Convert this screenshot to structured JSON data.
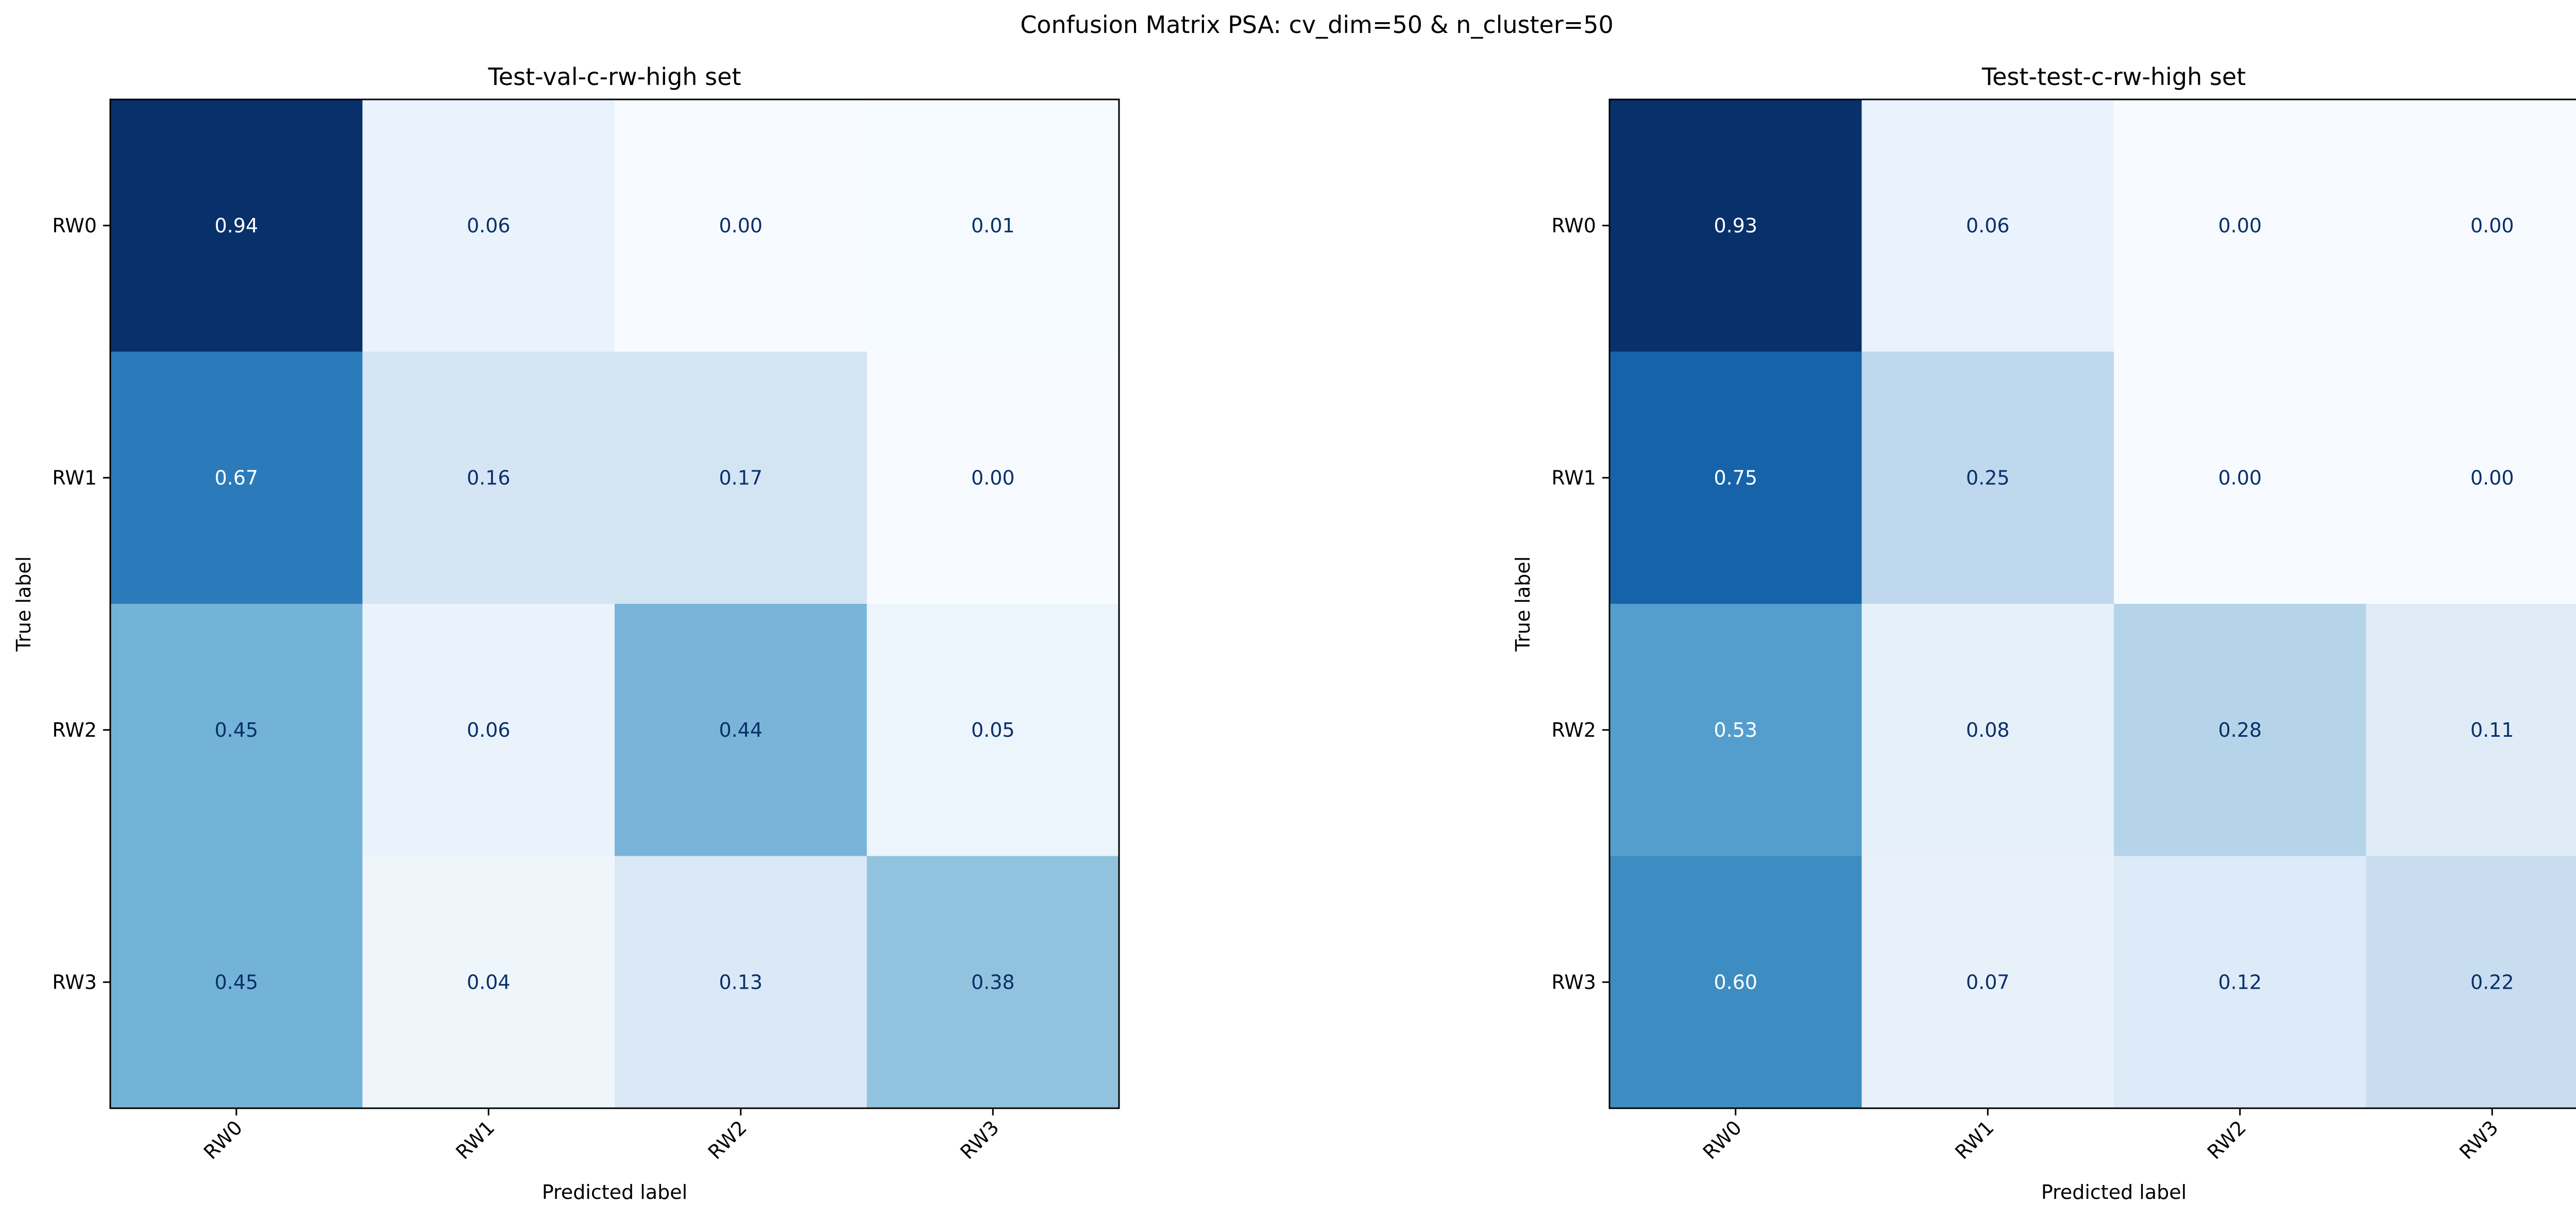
{
  "figure": {
    "suptitle": "Confusion Matrix PSA: cv_dim=50 & n_cluster=50"
  },
  "colormap": {
    "name": "Blues",
    "low": "#f7fbff",
    "high": "#08306b",
    "text_light": "#ffffff",
    "text_dark": "#08306b"
  },
  "chart_data": [
    {
      "type": "heatmap",
      "title": "Test-val-c-rw-high set",
      "xlabel": "Predicted label",
      "ylabel": "True label",
      "x_categories": [
        "RW0",
        "RW1",
        "RW2",
        "RW3"
      ],
      "y_categories": [
        "RW0",
        "RW1",
        "RW2",
        "RW3"
      ],
      "values": [
        [
          0.94,
          0.06,
          0.0,
          0.01
        ],
        [
          0.67,
          0.16,
          0.17,
          0.0
        ],
        [
          0.45,
          0.06,
          0.44,
          0.05
        ],
        [
          0.45,
          0.04,
          0.13,
          0.38
        ]
      ],
      "labels": [
        [
          "0.94",
          "0.06",
          "0.00",
          "0.01"
        ],
        [
          "0.67",
          "0.16",
          "0.17",
          "0.00"
        ],
        [
          "0.45",
          "0.06",
          "0.44",
          "0.05"
        ],
        [
          "0.45",
          "0.04",
          "0.13",
          "0.38"
        ]
      ],
      "x_tick_rotation": 45,
      "grid": false
    },
    {
      "type": "heatmap",
      "title": "Test-test-c-rw-high set",
      "xlabel": "Predicted label",
      "ylabel": "True label",
      "x_categories": [
        "RW0",
        "RW1",
        "RW2",
        "RW3"
      ],
      "y_categories": [
        "RW0",
        "RW1",
        "RW2",
        "RW3"
      ],
      "values": [
        [
          0.93,
          0.06,
          0.0,
          0.0
        ],
        [
          0.75,
          0.25,
          0.0,
          0.0
        ],
        [
          0.53,
          0.08,
          0.28,
          0.11
        ],
        [
          0.6,
          0.07,
          0.12,
          0.22
        ]
      ],
      "labels": [
        [
          "0.93",
          "0.06",
          "0.00",
          "0.00"
        ],
        [
          "0.75",
          "0.25",
          "0.00",
          "0.00"
        ],
        [
          "0.53",
          "0.08",
          "0.28",
          "0.11"
        ],
        [
          "0.60",
          "0.07",
          "0.12",
          "0.22"
        ]
      ],
      "x_tick_rotation": 45,
      "grid": false
    }
  ]
}
